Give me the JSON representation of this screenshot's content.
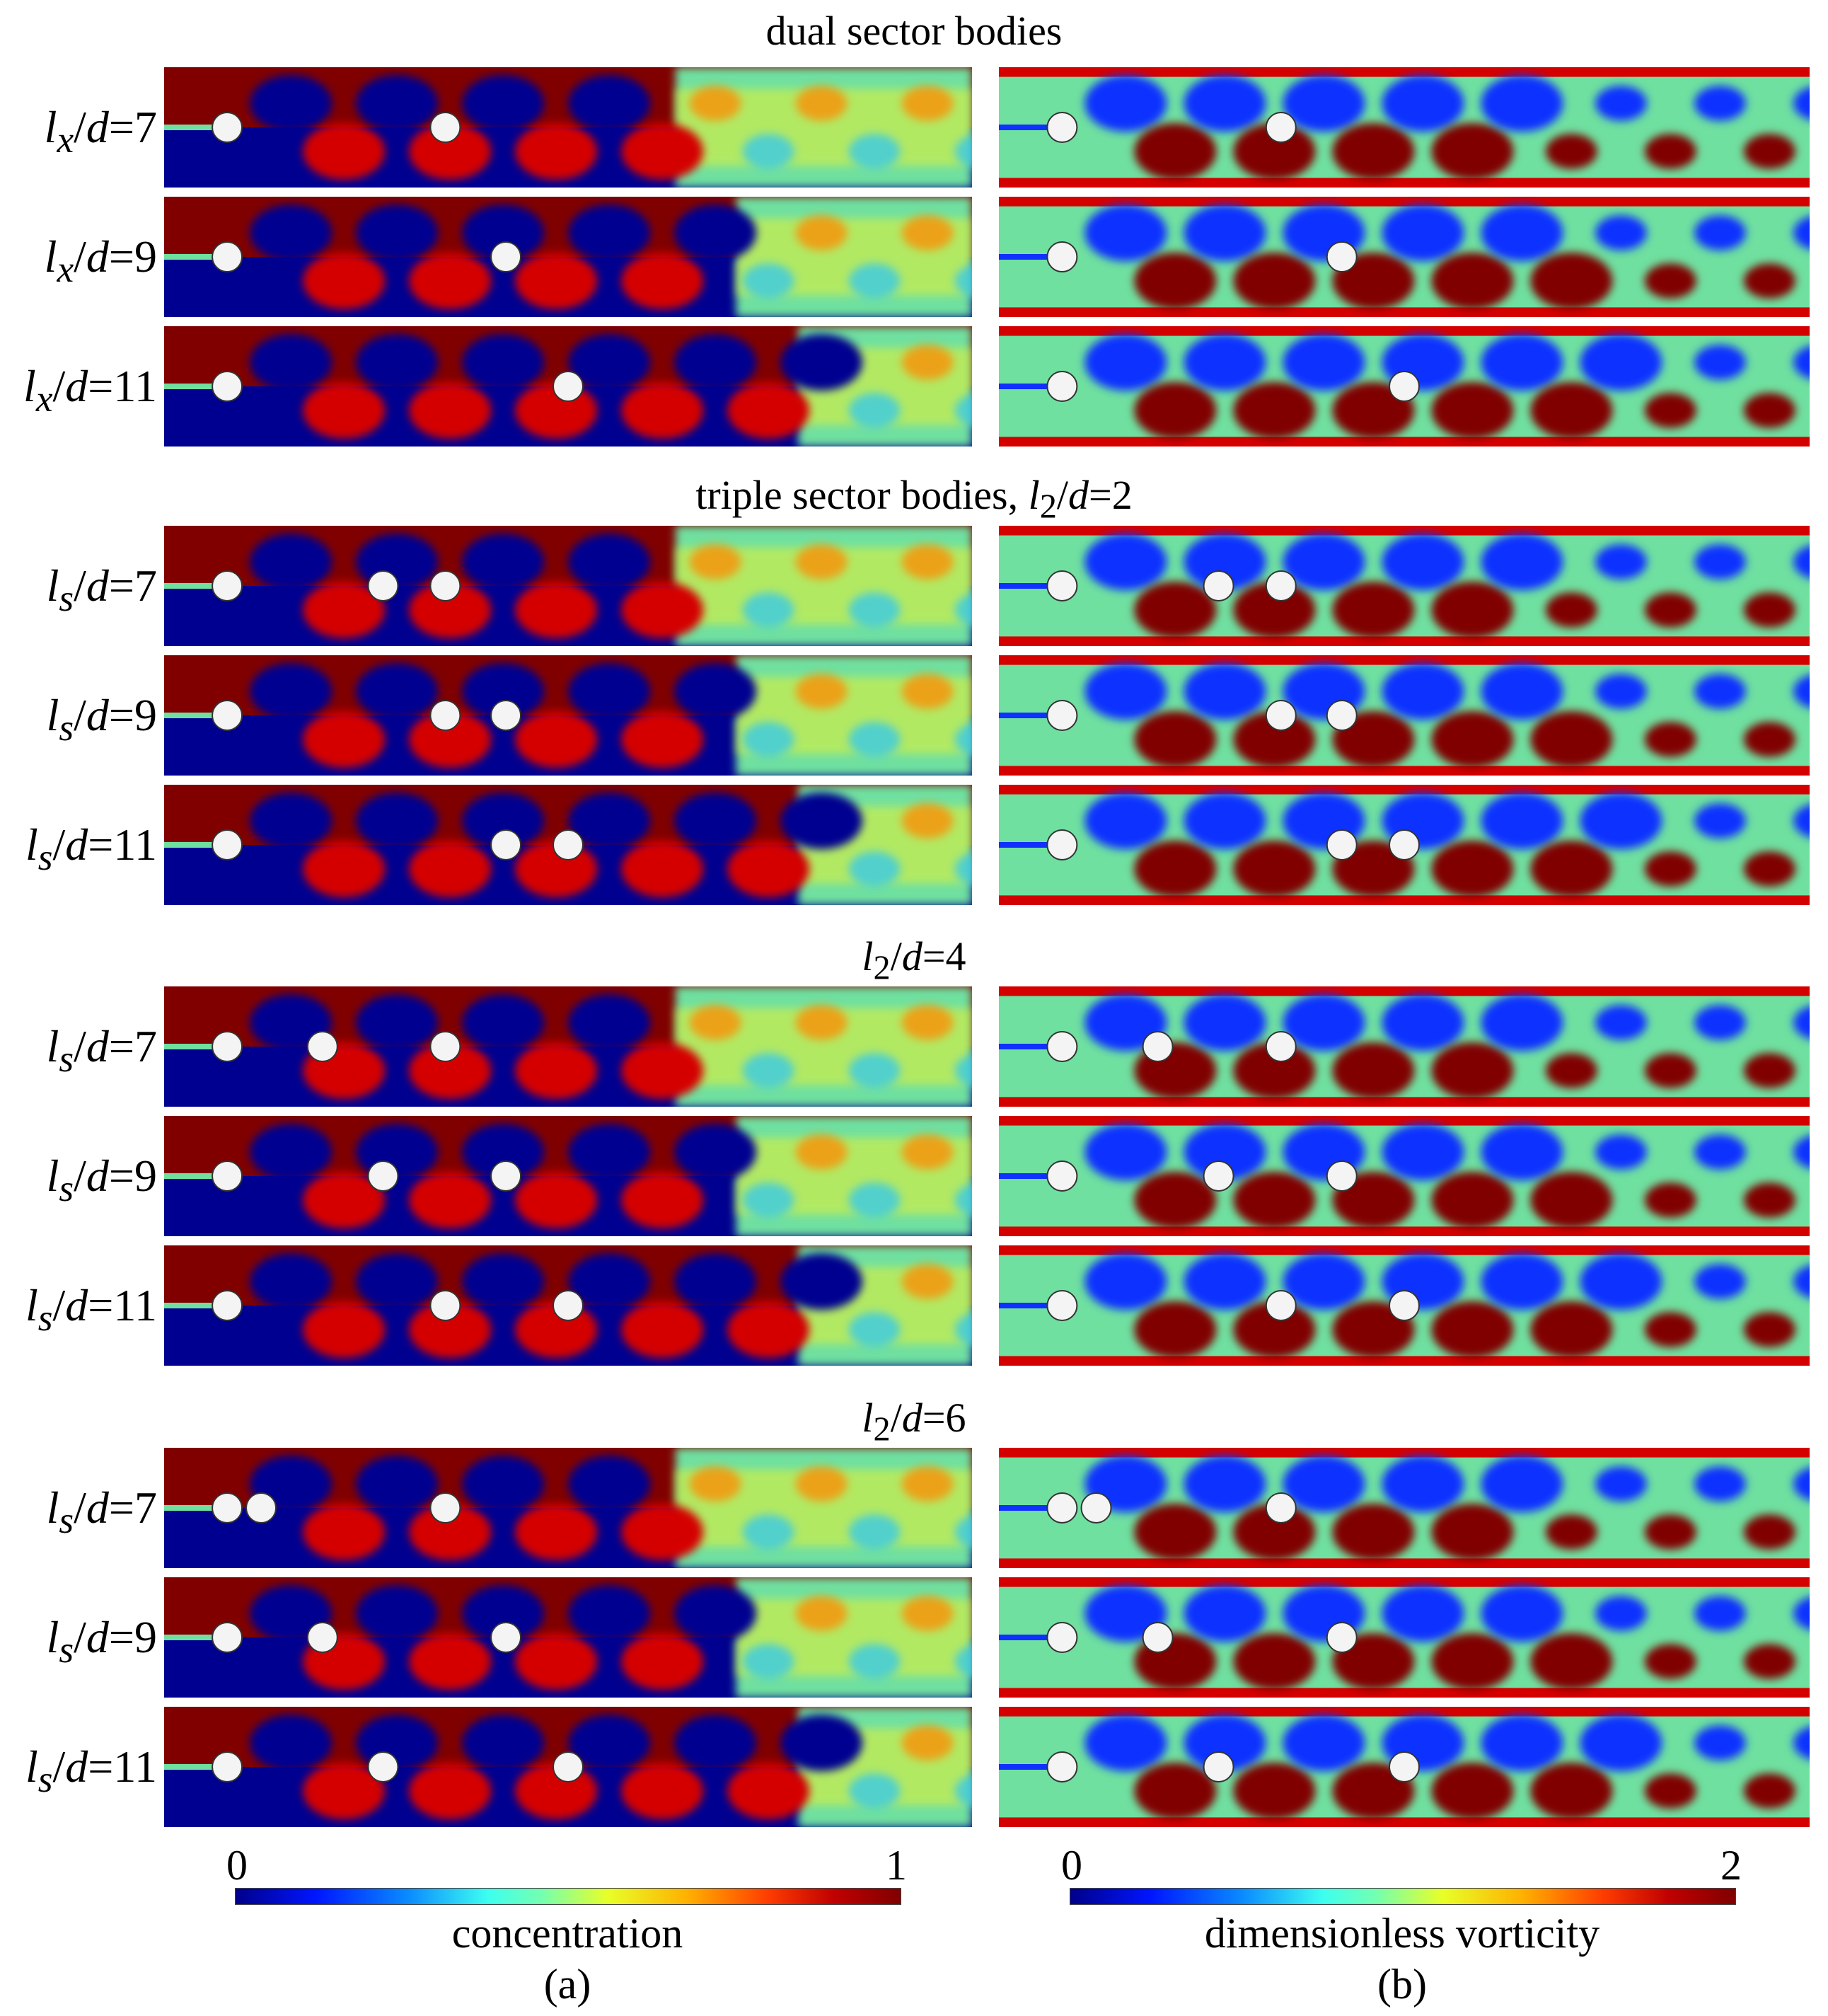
{
  "sections": [
    {
      "title_html": "dual sector bodies",
      "rows": [
        {
          "label_html": "<i>l</i><sub><i>x</i></sub>/<i>d</i>=7",
          "bodies": [
            0,
            1
          ]
        },
        {
          "label_html": "<i>l</i><sub><i>x</i></sub>/<i>d</i>=9",
          "bodies": [
            0,
            2
          ]
        },
        {
          "label_html": "<i>l</i><sub><i>x</i></sub>/<i>d</i>=11",
          "bodies": [
            0,
            3
          ]
        }
      ]
    },
    {
      "title_html": "triple sector bodies, <i>l</i><sub>2</sub>/<i>d</i>=2",
      "rows": [
        {
          "label_html": "<i>l</i><sub><i>s</i></sub>/<i>d</i>=7",
          "bodies": [
            0,
            4,
            5
          ]
        },
        {
          "label_html": "<i>l</i><sub><i>s</i></sub>/<i>d</i>=9",
          "bodies": [
            0,
            5,
            6
          ]
        },
        {
          "label_html": "<i>l</i><sub><i>s</i></sub>/<i>d</i>=11",
          "bodies": [
            0,
            6,
            7
          ]
        }
      ]
    },
    {
      "title_html": "<i>l</i><sub>2</sub>/<i>d</i>=4",
      "rows": [
        {
          "label_html": "<i>l</i><sub><i>s</i></sub>/<i>d</i>=7",
          "bodies": [
            0,
            8,
            5
          ]
        },
        {
          "label_html": "<i>l</i><sub><i>s</i></sub>/<i>d</i>=9",
          "bodies": [
            0,
            4,
            6
          ]
        },
        {
          "label_html": "<i>l</i><sub><i>s</i></sub>/<i>d</i>=11",
          "bodies": [
            0,
            5,
            7
          ]
        }
      ]
    },
    {
      "title_html": "<i>l</i><sub>2</sub>/<i>d</i>=6",
      "rows": [
        {
          "label_html": "<i>l</i><sub><i>s</i></sub>/<i>d</i>=7",
          "bodies": [
            0,
            9,
            5
          ]
        },
        {
          "label_html": "<i>l</i><sub><i>s</i></sub>/<i>d</i>=9",
          "bodies": [
            0,
            8,
            6
          ]
        },
        {
          "label_html": "<i>l</i><sub><i>s</i></sub>/<i>d</i>=11",
          "bodies": [
            0,
            4,
            7
          ]
        }
      ]
    }
  ],
  "colorbars": {
    "concentration": {
      "label": "concentration",
      "min": "0",
      "max": "1"
    },
    "vorticity": {
      "label": "dimensionless vorticity",
      "min": "0",
      "max": "2"
    }
  },
  "subfigure_labels": {
    "a": "(a)",
    "b": "(b)"
  },
  "colors": {
    "dark_red": "#800000",
    "red": "#d40000",
    "orange": "#ff8a00",
    "yellow": "#e8f230",
    "green_cyan": "#6fe0a0",
    "cyan": "#30c8f0",
    "blue": "#1030ff",
    "dark_blue": "#000090",
    "body": "#f4f4f4"
  }
}
